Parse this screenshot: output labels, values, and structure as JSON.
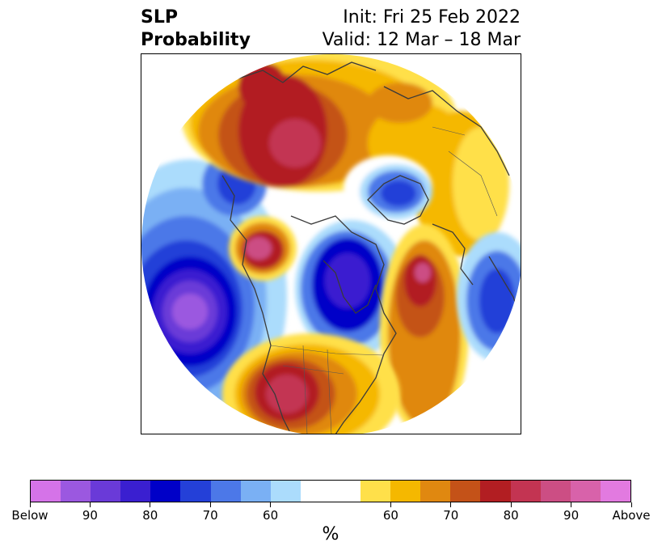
{
  "title": {
    "left_line1": "SLP",
    "left_line2": "Probability",
    "right_line1": "Init: Fri 25 Feb 2022",
    "right_line2": "Valid: 12 Mar – 18 Mar"
  },
  "colorbar": {
    "unit": "%",
    "colors": [
      "#d573e8",
      "#9b58e0",
      "#6a3ad8",
      "#3a1fd0",
      "#0000c8",
      "#2440d8",
      "#4c78e8",
      "#7ab0f4",
      "#abdcfc",
      "#ffffff",
      "#ffffff",
      "#ffe04a",
      "#f5b800",
      "#e08810",
      "#c45218",
      "#b21e22",
      "#c33452",
      "#cc4e84",
      "#d862aa",
      "#e27ae0"
    ],
    "tick_labels": [
      "Below",
      "90",
      "80",
      "70",
      "60",
      "60",
      "70",
      "80",
      "90",
      "Above"
    ]
  },
  "colors": {
    "coast": "#3a3a3a",
    "below_deep": "#6a3ad8",
    "below_strong": "#0000c8",
    "above_strong": "#b21e22",
    "above_peak": "#c33452"
  }
}
